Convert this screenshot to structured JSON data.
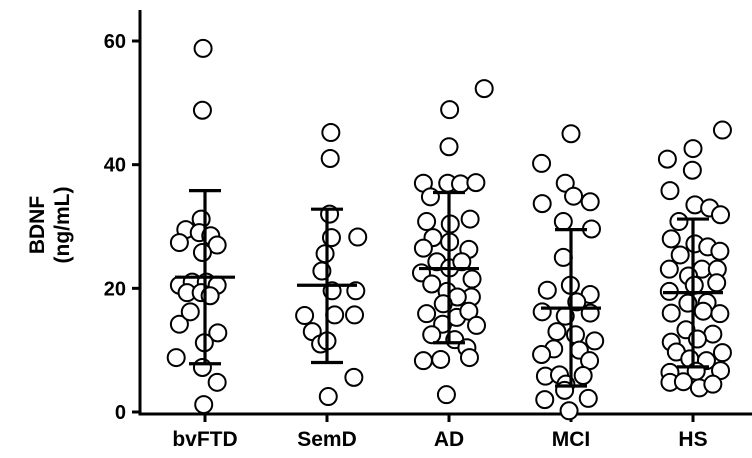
{
  "chart_data": {
    "type": "scatter",
    "title": "",
    "xlabel": "",
    "ylabel": [
      "BDNF",
      "(ng/mL)"
    ],
    "ylim": [
      0,
      65
    ],
    "yticks": [
      0,
      20,
      40,
      60
    ],
    "y_tick_labels": [
      "0",
      "20",
      "40",
      "60"
    ],
    "grid": false,
    "legend": "none",
    "marker": "open-circle",
    "categories": [
      "bvFTD",
      "SemD",
      "AD",
      "MCI",
      "HS"
    ],
    "series": [
      {
        "category": "bvFTD",
        "mean": 21.8,
        "sd_low": 7.8,
        "sd_high": 35.8,
        "points": [
          [
            -0.03,
            58.8
          ],
          [
            -0.04,
            48.8
          ],
          [
            -0.06,
            31.2
          ],
          [
            -0.3,
            29.5
          ],
          [
            -0.09,
            29.0
          ],
          [
            0.09,
            28.5
          ],
          [
            -0.4,
            27.4
          ],
          [
            0.19,
            27.0
          ],
          [
            -0.04,
            25.8
          ],
          [
            -0.4,
            20.5
          ],
          [
            -0.2,
            21.0
          ],
          [
            0.02,
            21.0
          ],
          [
            0.19,
            20.5
          ],
          [
            -0.28,
            19.3
          ],
          [
            -0.06,
            19.3
          ],
          [
            0.08,
            18.8
          ],
          [
            -0.4,
            14.2
          ],
          [
            -0.23,
            16.2
          ],
          [
            0.2,
            12.8
          ],
          [
            -0.01,
            11.2
          ],
          [
            -0.45,
            8.8
          ],
          [
            -0.04,
            7.2
          ],
          [
            0.19,
            4.8
          ],
          [
            -0.02,
            1.2
          ]
        ]
      },
      {
        "category": "SemD",
        "mean": 20.5,
        "sd_low": 8.0,
        "sd_high": 32.8,
        "points": [
          [
            0.06,
            45.2
          ],
          [
            0.05,
            41.0
          ],
          [
            0.04,
            32.0
          ],
          [
            0.07,
            28.2
          ],
          [
            0.48,
            28.3
          ],
          [
            -0.03,
            25.6
          ],
          [
            -0.08,
            22.8
          ],
          [
            0.08,
            19.6
          ],
          [
            0.45,
            19.6
          ],
          [
            -0.35,
            15.6
          ],
          [
            0.12,
            15.7
          ],
          [
            0.43,
            15.7
          ],
          [
            -0.23,
            13.0
          ],
          [
            -0.1,
            11.0
          ],
          [
            0.0,
            11.5
          ],
          [
            0.42,
            5.6
          ],
          [
            0.02,
            2.5
          ]
        ]
      },
      {
        "category": "AD",
        "mean": 23.2,
        "sd_low": 11.2,
        "sd_high": 35.5,
        "points": [
          [
            0.55,
            52.3
          ],
          [
            0.01,
            48.9
          ],
          [
            0.0,
            42.9
          ],
          [
            -0.4,
            37.0
          ],
          [
            -0.02,
            37.0
          ],
          [
            0.18,
            36.9
          ],
          [
            0.42,
            37.1
          ],
          [
            -0.29,
            34.8
          ],
          [
            -0.35,
            30.8
          ],
          [
            0.02,
            30.4
          ],
          [
            0.33,
            31.2
          ],
          [
            -0.25,
            28.2
          ],
          [
            0.01,
            27.5
          ],
          [
            -0.4,
            26.5
          ],
          [
            0.31,
            26.3
          ],
          [
            -0.19,
            24.3
          ],
          [
            -0.43,
            22.5
          ],
          [
            0.01,
            23.3
          ],
          [
            0.2,
            24.3
          ],
          [
            0.36,
            21.5
          ],
          [
            -0.27,
            20.7
          ],
          [
            -0.03,
            19.5
          ],
          [
            0.35,
            18.6
          ],
          [
            0.13,
            18.6
          ],
          [
            -0.35,
            15.9
          ],
          [
            -0.09,
            17.5
          ],
          [
            -0.1,
            14.2
          ],
          [
            0.12,
            15.3
          ],
          [
            0.31,
            16.3
          ],
          [
            0.43,
            14.0
          ],
          [
            -0.27,
            12.5
          ],
          [
            0.09,
            11.7
          ],
          [
            0.28,
            10.4
          ],
          [
            -0.4,
            8.3
          ],
          [
            -0.13,
            8.5
          ],
          [
            0.32,
            8.8
          ],
          [
            -0.04,
            2.8
          ]
        ]
      },
      {
        "category": "MCI",
        "mean": 16.8,
        "sd_low": 4.2,
        "sd_high": 29.5,
        "points": [
          [
            0.0,
            45.0
          ],
          [
            -0.46,
            40.2
          ],
          [
            -0.09,
            37.0
          ],
          [
            0.04,
            34.9
          ],
          [
            -0.45,
            33.7
          ],
          [
            0.3,
            34.0
          ],
          [
            -0.12,
            30.8
          ],
          [
            0.32,
            29.6
          ],
          [
            -0.12,
            25.0
          ],
          [
            -0.01,
            20.5
          ],
          [
            -0.37,
            19.7
          ],
          [
            0.3,
            19.0
          ],
          [
            0.09,
            17.8
          ],
          [
            -0.45,
            16.2
          ],
          [
            -0.09,
            15.5
          ],
          [
            0.3,
            16.0
          ],
          [
            -0.22,
            13.0
          ],
          [
            0.07,
            12.5
          ],
          [
            0.37,
            11.5
          ],
          [
            0.13,
            10.0
          ],
          [
            -0.27,
            10.2
          ],
          [
            -0.46,
            9.3
          ],
          [
            0.29,
            8.3
          ],
          [
            -0.4,
            5.8
          ],
          [
            -0.18,
            6.0
          ],
          [
            -0.08,
            4.5
          ],
          [
            0.19,
            5.9
          ],
          [
            -0.1,
            3.5
          ],
          [
            -0.41,
            2.0
          ],
          [
            0.27,
            2.2
          ],
          [
            -0.03,
            0.2
          ]
        ]
      },
      {
        "category": "HS",
        "mean": 19.3,
        "sd_low": 7.3,
        "sd_high": 31.2,
        "points": [
          [
            0.46,
            45.6
          ],
          [
            -0.4,
            40.9
          ],
          [
            0.0,
            42.6
          ],
          [
            -0.01,
            39.1
          ],
          [
            -0.36,
            35.8
          ],
          [
            0.03,
            33.5
          ],
          [
            0.26,
            33.0
          ],
          [
            0.43,
            31.9
          ],
          [
            -0.22,
            30.8
          ],
          [
            -0.34,
            28.0
          ],
          [
            0.03,
            27.2
          ],
          [
            0.23,
            26.7
          ],
          [
            0.42,
            26.0
          ],
          [
            -0.2,
            25.4
          ],
          [
            -0.37,
            23.1
          ],
          [
            0.14,
            23.1
          ],
          [
            0.38,
            23.1
          ],
          [
            -0.07,
            22.0
          ],
          [
            0.02,
            20.5
          ],
          [
            0.37,
            20.9
          ],
          [
            -0.37,
            19.5
          ],
          [
            -0.08,
            17.6
          ],
          [
            0.22,
            17.7
          ],
          [
            -0.34,
            16.0
          ],
          [
            0.16,
            16.3
          ],
          [
            0.42,
            15.9
          ],
          [
            -0.11,
            13.3
          ],
          [
            0.31,
            12.6
          ],
          [
            -0.34,
            11.3
          ],
          [
            0.07,
            11.8
          ],
          [
            -0.26,
            9.7
          ],
          [
            0.46,
            9.6
          ],
          [
            -0.05,
            8.6
          ],
          [
            0.21,
            8.3
          ],
          [
            -0.36,
            6.4
          ],
          [
            0.05,
            6.6
          ],
          [
            0.43,
            6.7
          ],
          [
            -0.36,
            4.8
          ],
          [
            -0.15,
            4.9
          ],
          [
            0.1,
            3.9
          ],
          [
            0.31,
            4.5
          ]
        ]
      }
    ]
  }
}
